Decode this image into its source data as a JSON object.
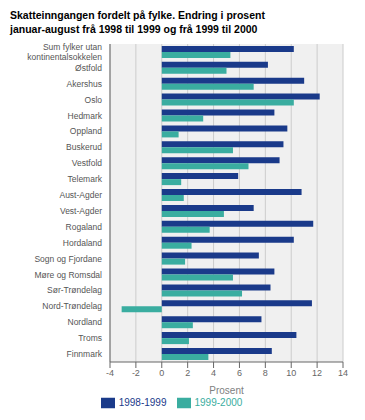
{
  "chart_data": {
    "type": "bar",
    "orientation": "horizontal",
    "title": "Skatteinngangen fordelt på fylke. Endring i prosent",
    "subtitle": "januar-august frå 1998 til 1999 og frå 1999 til 2000",
    "categories": [
      "Sum fylker utan\nkontinentalsokkelen",
      "Østfold",
      "Akershus",
      "Oslo",
      "Hedmark",
      "Oppland",
      "Buskerud",
      "Vestfold",
      "Telemark",
      "Aust-Agder",
      "Vest-Agder",
      "Rogaland",
      "Hordaland",
      "Sogn og Fjordane",
      "Møre og Romsdal",
      "Sør-Trøndelag",
      "Nord-Trøndelag",
      "Nordland",
      "Troms",
      "Finnmark"
    ],
    "series": [
      {
        "name": "1998-1999",
        "color": "#1a3a8a",
        "values": [
          10.2,
          8.2,
          11.0,
          12.2,
          8.7,
          9.7,
          9.4,
          9.1,
          5.9,
          10.8,
          7.1,
          11.7,
          10.2,
          7.5,
          8.7,
          8.4,
          11.6,
          7.7,
          10.4,
          8.5
        ]
      },
      {
        "name": "1999-2000",
        "color": "#3aada0",
        "values": [
          5.3,
          5.0,
          7.1,
          10.2,
          3.2,
          1.3,
          5.5,
          6.7,
          1.5,
          1.7,
          4.8,
          3.7,
          2.3,
          1.8,
          5.5,
          6.2,
          -3.1,
          2.4,
          2.1,
          3.6
        ]
      }
    ],
    "xlabel": "Prosent",
    "xlim": [
      -4,
      14
    ],
    "xticks": [
      -4,
      -2,
      0,
      2,
      4,
      6,
      8,
      10,
      12,
      14
    ],
    "grid": true,
    "legend": "bottom"
  }
}
